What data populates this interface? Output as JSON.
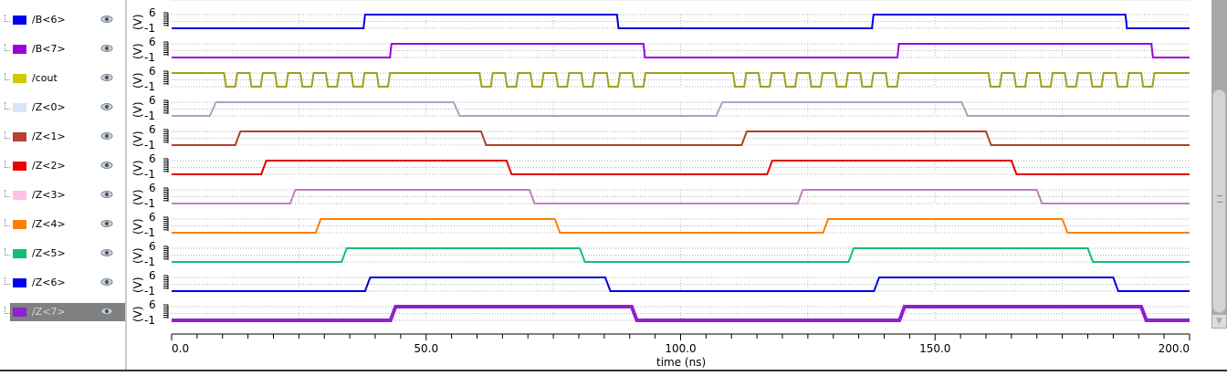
{
  "signals": [
    {
      "name": "/B<6>",
      "color": "#0000e0",
      "swatch": "#0000f0",
      "init": 0,
      "edges": [
        37.7,
        87.5,
        137.6,
        187.4
      ],
      "rise": 0.3
    },
    {
      "name": "/B<7>",
      "color": "#9900dd",
      "swatch": "#9900dd",
      "init": 0,
      "edges": [
        42.9,
        92.7,
        142.6,
        192.5
      ],
      "rise": 0.3
    },
    {
      "name": "/cout",
      "color": "#a0a020",
      "swatch": "#d4c800",
      "init": 1,
      "pulse_groups": [
        10.3,
        60.5,
        110.3,
        160.5
      ],
      "pulses_per_group": 7,
      "pulse_period": 5,
      "pulse_low": 2.2
    },
    {
      "name": "/Z<0>",
      "color": "#a0a8c0",
      "swatch": "#d8e4f8",
      "init": 0,
      "edges": [
        7.5,
        55.4,
        107,
        155.2
      ],
      "rise": 1.2
    },
    {
      "name": "/Z<1>",
      "color": "#b04020",
      "swatch": "#b84030",
      "init": 0,
      "edges": [
        12.5,
        60.8,
        112,
        160
      ],
      "rise": 1.0
    },
    {
      "name": "/Z<2>",
      "color": "#e00000",
      "swatch": "#ee0000",
      "init": 0,
      "edges": [
        17.6,
        65.8,
        117,
        165
      ],
      "rise": 1.0
    },
    {
      "name": "/Z<3>",
      "color": "#c080c0",
      "swatch": "#ffc0e8",
      "init": 0,
      "edges": [
        23.3,
        70.3,
        123,
        170
      ],
      "rise": 1.0
    },
    {
      "name": "/Z<4>",
      "color": "#ff8000",
      "swatch": "#ff8000",
      "init": 0,
      "edges": [
        28.3,
        75.3,
        128,
        175
      ],
      "rise": 1.0
    },
    {
      "name": "/Z<5>",
      "color": "#10c070",
      "swatch": "#10c070",
      "init": 0,
      "edges": [
        33.4,
        80.2,
        133,
        180
      ],
      "rise": 1.0
    },
    {
      "name": "/Z<6>",
      "color": "#0000e0",
      "swatch": "#0000f0",
      "init": 0,
      "edges": [
        38,
        85.2,
        138,
        185
      ],
      "rise": 1.0
    },
    {
      "name": "/Z<7>",
      "color": "#9020d0",
      "swatch": "#9020d0",
      "init": 0,
      "edges": [
        43,
        90.4,
        143,
        190.5
      ],
      "rise": 1.0,
      "selected": true
    }
  ],
  "yaxis": {
    "unit": "(V)",
    "top": "6",
    "bottom": "-1"
  },
  "xaxis": {
    "label": "time (ns)",
    "min": 0,
    "max": 200,
    "ticks": [
      "0.0",
      "50.0",
      "100.0",
      "150.0",
      "200.0"
    ]
  }
}
